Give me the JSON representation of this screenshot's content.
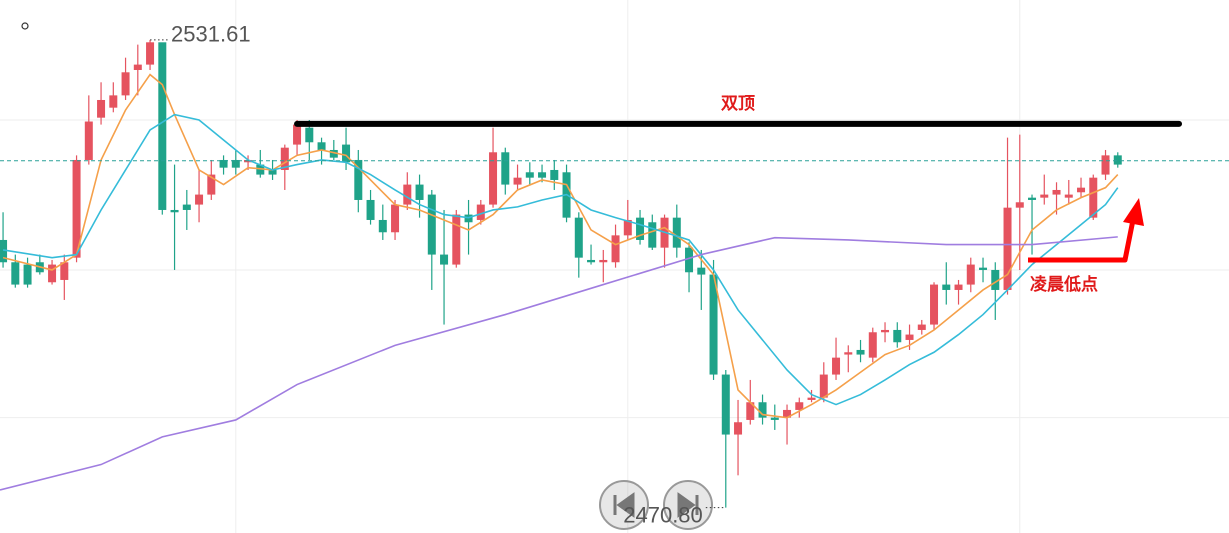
{
  "chart_data": {
    "type": "candlestick",
    "up_color": "#e5535f",
    "down_color": "#1fa389",
    "xlim": [
      -0.25,
      100.08
    ],
    "ylim": [
      2467.5,
      2536.8
    ],
    "ygrid": [
      2521.2,
      2501.7,
      2482.5
    ],
    "xgrid": [
      19,
      51,
      83
    ],
    "candles": {
      "open": [
        2505.6,
        2502.7,
        2502.4,
        2502.7,
        2500.1,
        2500.4,
        2503.3,
        2516.0,
        2521.5,
        2522.8,
        2524.4,
        2527.7,
        2528.4,
        2531.3,
        2509.5,
        2510.2,
        2510.2,
        2511.5,
        2516.0,
        2516.0,
        2515.7,
        2515.4,
        2514.7,
        2514.7,
        2518.0,
        2520.2,
        2518.3,
        2517.3,
        2518.0,
        2516.0,
        2510.8,
        2508.2,
        2506.6,
        2510.2,
        2512.8,
        2511.5,
        2503.7,
        2502.4,
        2508.9,
        2508.2,
        2510.2,
        2517.0,
        2512.8,
        2514.4,
        2514.4,
        2514.7,
        2514.4,
        2508.5,
        2503.0,
        2502.7,
        2502.7,
        2506.2,
        2508.5,
        2507.9,
        2504.6,
        2508.5,
        2504.6,
        2502.0,
        2501.1,
        2488.1,
        2480.3,
        2482.2,
        2484.5,
        2482.5,
        2482.5,
        2483.5,
        2484.8,
        2485.1,
        2488.1,
        2490.7,
        2491.3,
        2490.3,
        2493.6,
        2493.9,
        2492.6,
        2493.9,
        2494.6,
        2499.8,
        2499.1,
        2499.8,
        2502.0,
        2501.7,
        2499.1,
        2509.8,
        2511.1,
        2511.1,
        2511.5,
        2511.1,
        2511.8,
        2508.5,
        2514.1,
        2516.6
      ],
      "close": [
        2502.7,
        2499.8,
        2499.8,
        2501.4,
        2502.4,
        2502.7,
        2516.0,
        2521.0,
        2523.8,
        2524.4,
        2527.4,
        2528.4,
        2531.3,
        2509.5,
        2509.2,
        2509.5,
        2511.5,
        2514.1,
        2515.0,
        2515.0,
        2516.0,
        2514.1,
        2514.1,
        2517.6,
        2520.6,
        2518.3,
        2517.3,
        2516.3,
        2515.7,
        2510.8,
        2508.2,
        2506.6,
        2510.2,
        2512.8,
        2510.8,
        2503.7,
        2502.4,
        2508.9,
        2507.9,
        2510.2,
        2517.0,
        2512.8,
        2513.7,
        2513.7,
        2513.7,
        2513.4,
        2508.5,
        2503.3,
        2502.7,
        2503.0,
        2506.2,
        2508.2,
        2505.6,
        2504.6,
        2508.5,
        2504.6,
        2501.4,
        2501.1,
        2488.1,
        2480.3,
        2481.9,
        2484.5,
        2482.5,
        2482.2,
        2483.5,
        2484.5,
        2485.1,
        2488.1,
        2490.3,
        2491.0,
        2490.7,
        2493.6,
        2493.9,
        2492.3,
        2493.3,
        2494.6,
        2499.8,
        2499.1,
        2499.8,
        2502.4,
        2501.7,
        2499.1,
        2509.8,
        2510.5,
        2510.8,
        2511.5,
        2512.1,
        2511.5,
        2512.4,
        2513.7,
        2516.6,
        2515.4
      ],
      "high": [
        2509.2,
        2503.7,
        2503.3,
        2503.7,
        2503.0,
        2503.7,
        2516.6,
        2524.4,
        2526.1,
        2526.1,
        2529.3,
        2531.0,
        2531.61,
        2531.0,
        2515.4,
        2512.1,
        2514.7,
        2516.0,
        2516.6,
        2517.3,
        2516.6,
        2517.3,
        2516.0,
        2518.0,
        2521.2,
        2521.2,
        2518.9,
        2518.6,
        2520.2,
        2517.3,
        2512.1,
        2510.2,
        2510.8,
        2514.4,
        2514.1,
        2512.1,
        2509.5,
        2509.5,
        2510.8,
        2510.8,
        2520.2,
        2517.6,
        2515.4,
        2515.7,
        2515.4,
        2516.0,
        2515.4,
        2509.2,
        2505.0,
        2504.3,
        2507.6,
        2510.8,
        2509.5,
        2508.9,
        2508.9,
        2510.2,
        2505.3,
        2504.3,
        2503.0,
        2488.7,
        2484.8,
        2487.4,
        2485.5,
        2484.2,
        2484.2,
        2485.1,
        2486.1,
        2489.7,
        2492.9,
        2491.9,
        2492.6,
        2494.2,
        2494.9,
        2494.9,
        2494.6,
        2495.2,
        2500.1,
        2502.7,
        2500.4,
        2503.3,
        2503.3,
        2502.7,
        2518.9,
        2519.3,
        2511.5,
        2514.1,
        2513.1,
        2513.4,
        2513.7,
        2514.1,
        2517.3,
        2517.0
      ],
      "low": [
        2502.0,
        2499.4,
        2499.4,
        2501.1,
        2499.8,
        2497.8,
        2502.7,
        2515.4,
        2520.6,
        2522.2,
        2523.8,
        2524.4,
        2527.7,
        2508.9,
        2501.7,
        2506.9,
        2507.9,
        2510.8,
        2514.1,
        2514.1,
        2514.7,
        2513.7,
        2513.4,
        2512.1,
        2516.6,
        2516.0,
        2515.4,
        2516.0,
        2514.7,
        2509.2,
        2507.6,
        2505.6,
        2505.6,
        2509.5,
        2508.5,
        2499.1,
        2494.6,
        2502.0,
        2503.7,
        2507.6,
        2509.8,
        2511.5,
        2512.1,
        2512.8,
        2513.1,
        2512.1,
        2507.9,
        2500.7,
        2502.4,
        2500.1,
        2502.0,
        2505.6,
        2505.0,
        2504.3,
        2502.0,
        2503.3,
        2498.8,
        2496.5,
        2487.4,
        2470.8,
        2475.0,
        2481.6,
        2481.6,
        2480.9,
        2479.0,
        2482.5,
        2484.5,
        2484.5,
        2487.4,
        2488.4,
        2489.7,
        2489.7,
        2492.3,
        2491.6,
        2491.3,
        2493.3,
        2493.9,
        2497.2,
        2497.2,
        2498.8,
        2500.1,
        2495.2,
        2498.5,
        2501.7,
        2503.7,
        2510.2,
        2508.9,
        2510.2,
        2511.1,
        2508.2,
        2513.4,
        2515.0
      ]
    },
    "lines": [
      {
        "color": "#f5a04a",
        "x": [
          0,
          4,
          6,
          8,
          10,
          12,
          13,
          14,
          16,
          18,
          20,
          22,
          24,
          26,
          28,
          30,
          32,
          34,
          36,
          38,
          40,
          42,
          44,
          46,
          48,
          50,
          52,
          54,
          56,
          58,
          60,
          62,
          64,
          66,
          68,
          70,
          72,
          74,
          76,
          78,
          80,
          82,
          84,
          86,
          88,
          90,
          91
        ],
        "values": [
          2503.3,
          2501.7,
          2503.7,
          2516.0,
          2522.5,
          2527.1,
          2525.8,
          2521.9,
          2514.7,
          2512.8,
          2515.0,
          2514.7,
          2516.6,
          2517.3,
          2516.6,
          2513.4,
          2510.2,
          2509.5,
          2508.2,
          2506.9,
          2508.9,
          2512.1,
          2513.4,
          2512.8,
          2506.9,
          2505.0,
          2506.2,
          2507.2,
          2505.0,
          2501.1,
          2486.1,
          2482.9,
          2482.5,
          2484.2,
          2486.1,
          2488.4,
          2490.7,
          2491.9,
          2493.9,
          2496.5,
          2499.1,
          2501.1,
          2506.9,
          2509.5,
          2511.1,
          2512.4,
          2514.1
        ]
      },
      {
        "color": "#35bcd9",
        "x": [
          0,
          4,
          6,
          8,
          10,
          12,
          14,
          16,
          18,
          20,
          22,
          24,
          26,
          28,
          30,
          32,
          34,
          36,
          38,
          40,
          42,
          44,
          46,
          48,
          50,
          52,
          54,
          56,
          58,
          60,
          62,
          64,
          66,
          68,
          70,
          72,
          74,
          76,
          78,
          80,
          82,
          84,
          86,
          88,
          90,
          91
        ],
        "values": [
          2504.3,
          2503.3,
          2503.7,
          2509.5,
          2514.7,
          2519.9,
          2521.9,
          2521.2,
          2518.6,
          2516.0,
          2514.7,
          2515.4,
          2516.0,
          2515.7,
          2514.1,
          2512.1,
          2510.2,
          2508.9,
          2508.5,
          2509.5,
          2509.9,
          2510.8,
          2511.5,
          2509.5,
          2508.5,
          2507.6,
          2506.6,
          2505.6,
          2501.7,
          2496.5,
          2492.6,
          2488.7,
          2485.5,
          2484.2,
          2485.5,
          2487.4,
          2489.4,
          2491.0,
          2493.3,
          2495.9,
          2499.1,
          2502.4,
          2505.0,
          2507.6,
          2510.2,
          2512.4
        ]
      },
      {
        "color": "#a07de0",
        "x": [
          -0.25,
          8,
          13,
          19,
          24,
          32,
          41,
          49,
          57,
          63,
          69,
          77,
          84,
          91
        ],
        "values": [
          2473.1,
          2476.4,
          2480.0,
          2482.2,
          2486.8,
          2491.9,
          2495.9,
          2499.8,
          2503.7,
          2505.9,
          2505.6,
          2505.0,
          2505.0,
          2506.0
        ]
      }
    ],
    "price_line": 2515.9,
    "double_top": {
      "label": "双顶",
      "value": 2520.7,
      "x": [
        24,
        96
      ]
    },
    "high_label": 2531.61,
    "low_label": {
      "value": 2470.8,
      "label": "2470.80"
    },
    "annotation": "凌晨低点"
  }
}
